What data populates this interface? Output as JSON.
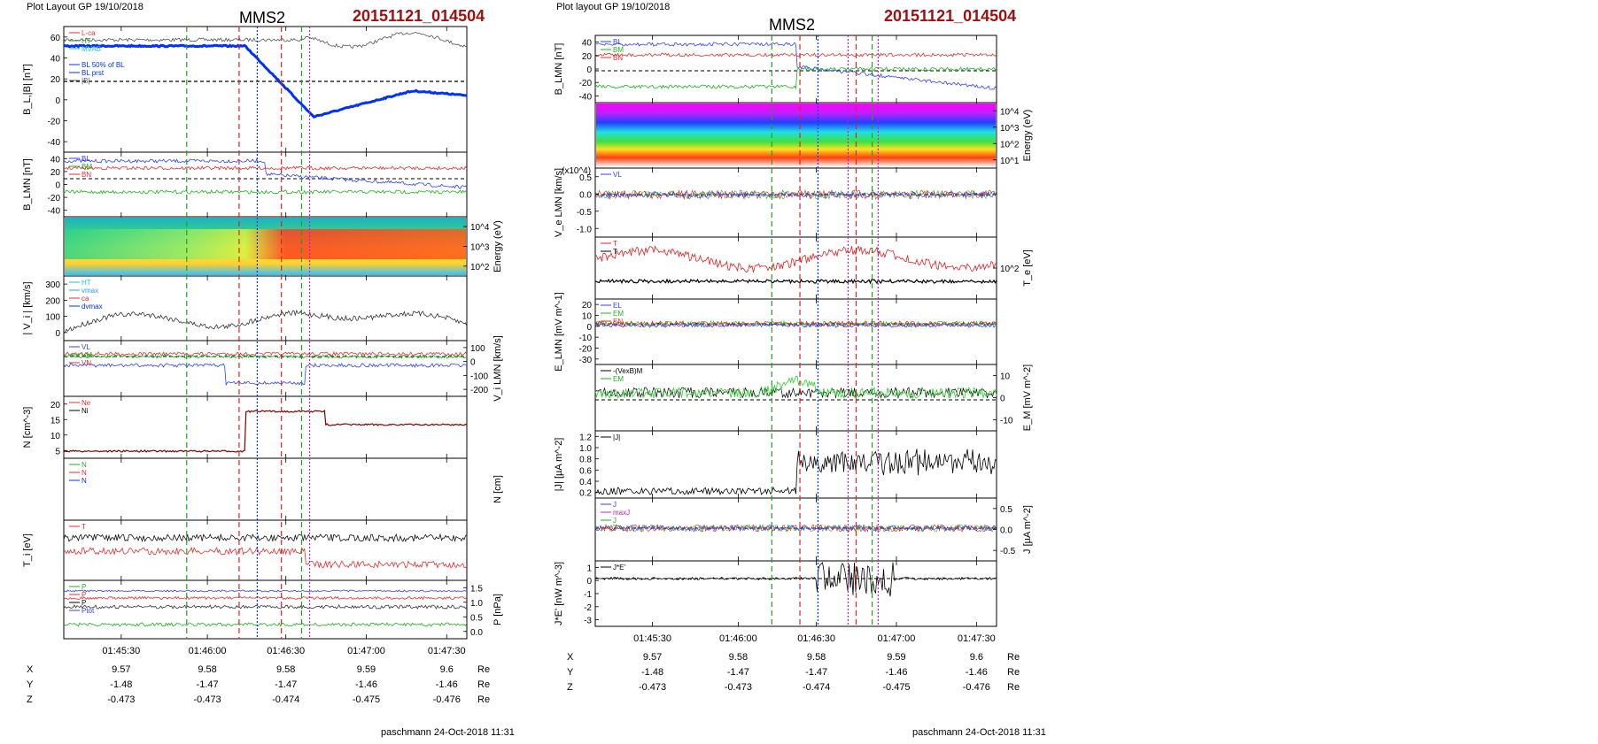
{
  "left": {
    "layout_label": "Plot Layout GP 19/10/2018",
    "spacecraft": "MMS2",
    "event_id": "20151121_014504",
    "footer": "paschmann 24-Oct-2018 11:31",
    "x_ticks": [
      "01:45:30",
      "01:46:00",
      "01:46:30",
      "01:47:00",
      "01:47:30"
    ],
    "coords": {
      "labels": [
        "X",
        "Y",
        "Z"
      ],
      "rows": [
        [
          "9.57",
          "9.58",
          "9.58",
          "9.59",
          "9.6"
        ],
        [
          "-1.48",
          "-1.47",
          "-1.47",
          "-1.46",
          "-1.46"
        ],
        [
          "-0.473",
          "-0.473",
          "-0.474",
          "-0.475",
          "-0.476"
        ]
      ],
      "unit": "Re"
    },
    "panels": [
      {
        "ylabel": "B_L,|B| [nT]",
        "ticks": [
          "60",
          "40",
          "20",
          "0",
          "-20",
          "-40"
        ],
        "legend": [
          "L-ca",
          "HT",
          "MVAB",
          "",
          "BL 50% of BL",
          "BL prst",
          "|B|"
        ]
      },
      {
        "ylabel": "B_LMN [nT]",
        "ticks": [
          "40",
          "20",
          "0",
          "-20",
          "-40"
        ],
        "legend": [
          "BL",
          "BM",
          "BN"
        ]
      },
      {
        "ylabel": "Energy (eV)",
        "ticks_right": [
          "10^4",
          "10^3",
          "10^2"
        ]
      },
      {
        "ylabel": "| V_i | [km/s]",
        "ticks": [
          "300",
          "200",
          "100",
          "0"
        ],
        "legend": [
          "HT",
          "vmax",
          "ca",
          "dvmax"
        ]
      },
      {
        "ylabel": "V_i LMN [km/s]",
        "ticks_right": [
          "100",
          "0",
          "-100",
          "-200"
        ],
        "legend": [
          "VL",
          "VM",
          "VN"
        ]
      },
      {
        "ylabel": "N [cm^-3]",
        "ticks": [
          "20",
          "15",
          "10",
          "5"
        ],
        "legend": [
          "Ne",
          "Ni"
        ]
      },
      {
        "ylabel": "N [cm]",
        "legend": [
          "N",
          "N",
          "N"
        ]
      },
      {
        "ylabel": "T_i [eV]",
        "legend": [
          "T"
        ]
      },
      {
        "ylabel": "P [nPa]",
        "ticks_right": [
          "1.5",
          "1.0",
          "0.5",
          "0.0"
        ],
        "legend": [
          "P",
          "P",
          "P",
          "Ptot"
        ]
      }
    ]
  },
  "right": {
    "layout_label": "Plot layout GP 19/10/2018",
    "spacecraft": "MMS2",
    "event_id": "20151121_014504",
    "footer": "paschmann 24-Oct-2018 11:31",
    "x_ticks": [
      "01:45:30",
      "01:46:00",
      "01:46:30",
      "01:47:00",
      "01:47:30"
    ],
    "coords": {
      "labels": [
        "X",
        "Y",
        "Z"
      ],
      "rows": [
        [
          "9.57",
          "9.58",
          "9.58",
          "9.59",
          "9.6"
        ],
        [
          "-1.48",
          "-1.47",
          "-1.47",
          "-1.46",
          "-1.46"
        ],
        [
          "-0.473",
          "-0.473",
          "-0.474",
          "-0.475",
          "-0.476"
        ]
      ],
      "unit": "Re"
    },
    "panels": [
      {
        "ylabel": "B_LMN [nT]",
        "ticks": [
          "40",
          "20",
          "0",
          "-20",
          "-40"
        ],
        "legend": [
          "BL",
          "BM",
          "BN"
        ]
      },
      {
        "ylabel": "Energy (eV)",
        "ticks_right": [
          "10^4",
          "10^3",
          "10^2",
          "10^1"
        ]
      },
      {
        "ylabel": "V_e LMN [km/s]",
        "ticks": [
          "0.5",
          "0.0",
          "-0.5",
          "-1.0"
        ],
        "legend": [
          "VL"
        ],
        "multiplier": "(x10^4)"
      },
      {
        "ylabel": "T_e [eV]",
        "ticks_right": [
          "10^2"
        ],
        "legend": [
          "T",
          "T"
        ]
      },
      {
        "ylabel": "E_LMN [mV m^-1]",
        "ticks": [
          "20",
          "10",
          "0",
          "-10",
          "-20",
          "-30"
        ],
        "legend": [
          "EL",
          "EM",
          "EN"
        ]
      },
      {
        "ylabel": "E_M [mV m^-2]",
        "ticks_right": [
          "10",
          "0",
          "-10"
        ],
        "legend": [
          "-(VexB)M",
          "EM"
        ]
      },
      {
        "ylabel": "|J| [µA m^-2]",
        "ticks": [
          "1.2",
          "1.0",
          "0.8",
          "0.6",
          "0.4",
          "0.2"
        ],
        "legend": [
          "|J|"
        ]
      },
      {
        "ylabel": "J [µA m^-2]",
        "ticks_right": [
          "0.5",
          "0.0",
          "-0.5"
        ],
        "legend": [
          "J",
          "maxJ",
          "J",
          "J"
        ]
      },
      {
        "ylabel": "J*E' [nW m^-3]",
        "ticks": [
          "1",
          "0",
          "-1",
          "-2",
          "-3"
        ],
        "legend": [
          "J*E'"
        ]
      }
    ]
  }
}
